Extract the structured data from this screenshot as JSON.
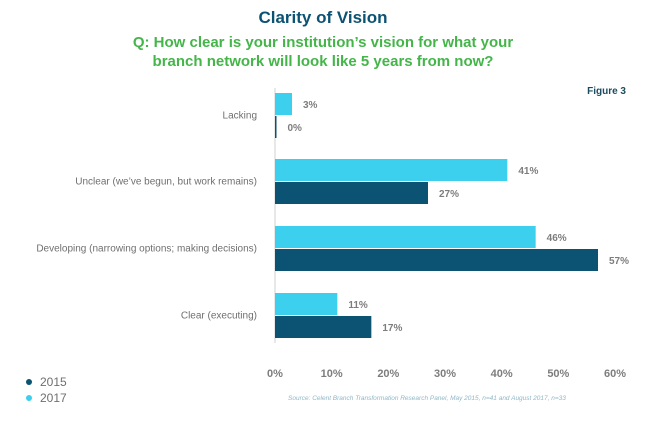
{
  "chart_data": {
    "type": "bar",
    "orientation": "horizontal",
    "title": "Clarity of Vision",
    "subtitle": "Q: How clear is your institution’s vision for what your branch network will look like 5 years from now?",
    "figure_label": "Figure 3",
    "categories": [
      "Lacking",
      "Unclear (we’ve begun, but work remains)",
      "Developing (narrowing options; making decisions)",
      "Clear (executing)"
    ],
    "series": [
      {
        "name": "2017",
        "color": "#3ccfee",
        "values": [
          3,
          41,
          46,
          11
        ],
        "labels": [
          "3%",
          "41%",
          "46%",
          "11%"
        ]
      },
      {
        "name": "2015",
        "color": "#0b5273",
        "values": [
          0,
          27,
          57,
          17
        ],
        "labels": [
          "0%",
          "27%",
          "57%",
          "17%"
        ]
      }
    ],
    "xlim": [
      0,
      60
    ],
    "x_ticks": [
      "0%",
      "10%",
      "20%",
      "30%",
      "40%",
      "50%",
      "60%"
    ],
    "grid": false,
    "legend_position": "bottom-left",
    "source": "Source: Celent Branch Transformation Research Panel, May 2015, n=41 and August 2017, n=33"
  },
  "legend": [
    {
      "label": "2015",
      "color": "#0b5273"
    },
    {
      "label": "2017",
      "color": "#3ccfee"
    }
  ]
}
